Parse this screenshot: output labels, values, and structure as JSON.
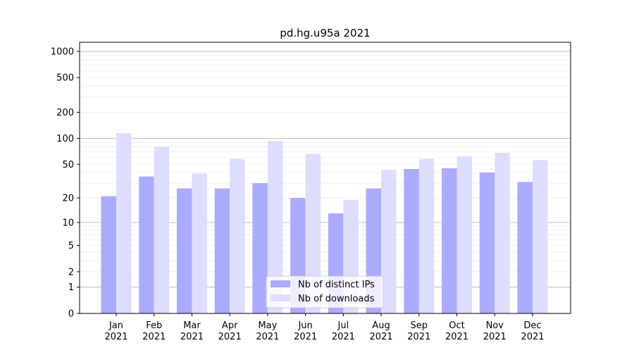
{
  "chart_data": {
    "type": "bar",
    "title": "pd.hg.u95a 2021",
    "xlabel": "",
    "ylabel": "",
    "yscale": "symlog (log10(1+y))",
    "ylim": [
      0,
      1300
    ],
    "yticks": [
      0,
      1,
      2,
      5,
      10,
      20,
      50,
      100,
      200,
      500,
      1000
    ],
    "grid": true,
    "legend_placement": "lower-center",
    "categories": [
      "Jan\n2021",
      "Feb\n2021",
      "Mar\n2021",
      "Apr\n2021",
      "May\n2021",
      "Jun\n2021",
      "Jul\n2021",
      "Aug\n2021",
      "Sep\n2021",
      "Oct\n2021",
      "Nov\n2021",
      "Dec\n2021"
    ],
    "series": [
      {
        "name": "Nb of distinct IPs",
        "color": "#aaaaff",
        "values": [
          21,
          36,
          26,
          26,
          30,
          20,
          13,
          26,
          44,
          45,
          40,
          31
        ]
      },
      {
        "name": "Nb of downloads",
        "color": "#ddddff",
        "values": [
          115,
          80,
          39,
          58,
          93,
          66,
          19,
          43,
          58,
          62,
          68,
          56
        ]
      }
    ]
  }
}
